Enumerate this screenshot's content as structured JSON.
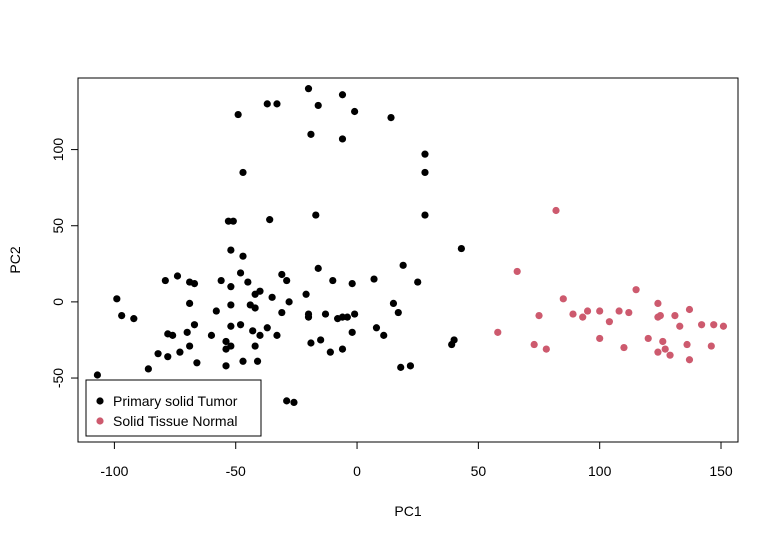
{
  "chart_data": {
    "type": "scatter",
    "title": "",
    "xlabel": "PC1",
    "ylabel": "PC2",
    "xlim": [
      -115,
      157
    ],
    "ylim": [
      -92,
      147
    ],
    "xticks": [
      -100,
      -50,
      0,
      50,
      100,
      150
    ],
    "yticks": [
      -50,
      0,
      50,
      100
    ],
    "grid": false,
    "legend": {
      "placement": "bottom-left",
      "entries": [
        "Primary solid Tumor",
        "Solid Tissue Normal"
      ]
    },
    "series": [
      {
        "name": "Primary solid Tumor",
        "color": "#000000",
        "points": [
          [
            -20,
            140
          ],
          [
            -37,
            130
          ],
          [
            -33,
            130
          ],
          [
            -6,
            136
          ],
          [
            -16,
            129
          ],
          [
            -1,
            125
          ],
          [
            -49,
            123
          ],
          [
            14,
            121
          ],
          [
            -19,
            110
          ],
          [
            -6,
            107
          ],
          [
            28,
            97
          ],
          [
            -47,
            85
          ],
          [
            28,
            85
          ],
          [
            28,
            57
          ],
          [
            -17,
            57
          ],
          [
            -51,
            53
          ],
          [
            -53,
            53
          ],
          [
            -36,
            54
          ],
          [
            43,
            35
          ],
          [
            -52,
            34
          ],
          [
            -47,
            30
          ],
          [
            -16,
            22
          ],
          [
            19,
            24
          ],
          [
            -48,
            19
          ],
          [
            -74,
            17
          ],
          [
            -79,
            14
          ],
          [
            -45,
            13
          ],
          [
            -10,
            14
          ],
          [
            -31,
            18
          ],
          [
            -29,
            14
          ],
          [
            7,
            15
          ],
          [
            -56,
            14
          ],
          [
            -67,
            12
          ],
          [
            -69,
            13
          ],
          [
            -52,
            10
          ],
          [
            -2,
            12
          ],
          [
            25,
            13
          ],
          [
            -40,
            7
          ],
          [
            -42,
            5
          ],
          [
            -35,
            3
          ],
          [
            -21,
            5
          ],
          [
            -99,
            2
          ],
          [
            -69,
            -1
          ],
          [
            -28,
            0
          ],
          [
            -44,
            -2
          ],
          [
            -52,
            -2
          ],
          [
            -20,
            -8
          ],
          [
            -42,
            -4
          ],
          [
            15,
            -1
          ],
          [
            -97,
            -9
          ],
          [
            -92,
            -11
          ],
          [
            -58,
            -6
          ],
          [
            -31,
            -7
          ],
          [
            -13,
            -8
          ],
          [
            -6,
            -10
          ],
          [
            -4,
            -10
          ],
          [
            -1,
            -8
          ],
          [
            17,
            -7
          ],
          [
            -67,
            -15
          ],
          [
            -48,
            -15
          ],
          [
            -37,
            -17
          ],
          [
            -43,
            -19
          ],
          [
            -52,
            -16
          ],
          [
            -20,
            -10
          ],
          [
            -8,
            -11
          ],
          [
            -78,
            -21
          ],
          [
            -76,
            -22
          ],
          [
            -70,
            -20
          ],
          [
            8,
            -17
          ],
          [
            -60,
            -22
          ],
          [
            -54,
            -26
          ],
          [
            -40,
            -22
          ],
          [
            -33,
            -22
          ],
          [
            -15,
            -25
          ],
          [
            -19,
            -27
          ],
          [
            -2,
            -20
          ],
          [
            11,
            -22
          ],
          [
            -52,
            -29
          ],
          [
            -73,
            -33
          ],
          [
            -69,
            -29
          ],
          [
            -6,
            -31
          ],
          [
            -11,
            -33
          ],
          [
            -54,
            -31
          ],
          [
            -42,
            -29
          ],
          [
            -82,
            -34
          ],
          [
            -78,
            -36
          ],
          [
            40,
            -25
          ],
          [
            39,
            -28
          ],
          [
            -66,
            -40
          ],
          [
            -47,
            -39
          ],
          [
            -54,
            -42
          ],
          [
            -41,
            -39
          ],
          [
            -86,
            -44
          ],
          [
            18,
            -43
          ],
          [
            22,
            -42
          ],
          [
            -107,
            -48
          ],
          [
            -29,
            -65
          ],
          [
            -26,
            -66
          ]
        ]
      },
      {
        "name": "Solid Tissue Normal",
        "color": "#CD5A6E",
        "points": [
          [
            82,
            60
          ],
          [
            66,
            20
          ],
          [
            115,
            8
          ],
          [
            85,
            2
          ],
          [
            124,
            -1
          ],
          [
            142,
            -15
          ],
          [
            75,
            -9
          ],
          [
            89,
            -8
          ],
          [
            95,
            -6
          ],
          [
            100,
            -6
          ],
          [
            108,
            -6
          ],
          [
            93,
            -10
          ],
          [
            104,
            -13
          ],
          [
            112,
            -7
          ],
          [
            125,
            -9
          ],
          [
            131,
            -9
          ],
          [
            124,
            -10
          ],
          [
            137,
            -5
          ],
          [
            147,
            -15
          ],
          [
            151,
            -16
          ],
          [
            133,
            -16
          ],
          [
            58,
            -20
          ],
          [
            100,
            -24
          ],
          [
            120,
            -24
          ],
          [
            126,
            -26
          ],
          [
            73,
            -28
          ],
          [
            110,
            -30
          ],
          [
            78,
            -31
          ],
          [
            124,
            -33
          ],
          [
            127,
            -31
          ],
          [
            129,
            -35
          ],
          [
            136,
            -28
          ],
          [
            146,
            -29
          ],
          [
            137,
            -38
          ]
        ]
      }
    ]
  }
}
